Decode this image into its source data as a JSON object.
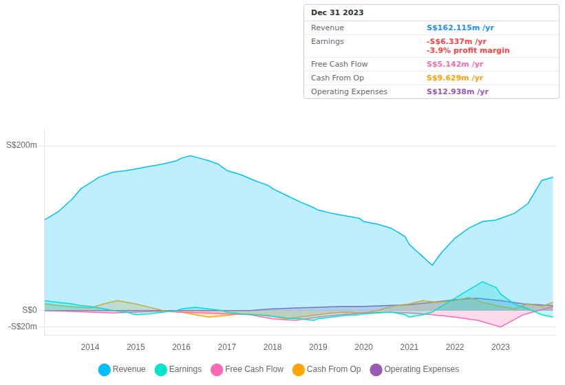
{
  "chart_data": {
    "type": "area",
    "annotations": {
      "title": "Dec 31 2023",
      "rows": [
        {
          "label": "Revenue",
          "text": "S$162.115m /yr",
          "color": "#1e90ff"
        },
        {
          "label": "Earnings",
          "text": "-S$6.337m /yr",
          "color": "#ff4444",
          "extra": "-3.9% profit margin",
          "extra_color": "#ff4444"
        },
        {
          "label": "Free Cash Flow",
          "text": "S$5.142m /yr",
          "color": "#ff69b4"
        },
        {
          "label": "Cash From Op",
          "text": "S$9.629m /yr",
          "color": "#ffa500"
        },
        {
          "label": "Operating Expenses",
          "text": "S$12.938m /yr",
          "color": "#9b59b6"
        }
      ]
    },
    "series": [
      {
        "name": "Revenue",
        "color": "#00bfff",
        "x": [
          2013.0,
          2013.3,
          2013.6,
          2013.8,
          2014.0,
          2014.2,
          2014.5,
          2014.8,
          2015.0,
          2015.3,
          2015.6,
          2015.9,
          2016.0,
          2016.2,
          2016.4,
          2016.6,
          2016.8,
          2017.0,
          2017.3,
          2017.6,
          2017.9,
          2018.0,
          2018.3,
          2018.6,
          2018.9,
          2019.0,
          2019.3,
          2019.6,
          2019.9,
          2020.0,
          2020.3,
          2020.6,
          2020.9,
          2021.0,
          2021.3,
          2021.5,
          2021.7,
          2022.0,
          2022.3,
          2022.6,
          2022.9,
          2023.0,
          2023.3,
          2023.6,
          2023.9,
          2024.15
        ],
        "values": [
          110,
          120,
          135,
          148,
          155,
          162,
          168,
          170,
          172,
          175,
          178,
          182,
          185,
          188,
          185,
          182,
          178,
          170,
          165,
          158,
          152,
          148,
          140,
          132,
          125,
          122,
          118,
          115,
          112,
          108,
          105,
          100,
          90,
          80,
          65,
          55,
          70,
          88,
          100,
          108,
          110,
          112,
          118,
          130,
          158,
          162
        ]
      },
      {
        "name": "Earnings",
        "color": "#00e5cc",
        "x": [
          2013.0,
          2013.3,
          2013.6,
          2013.8,
          2014.0,
          2014.2,
          2014.5,
          2014.8,
          2015.0,
          2015.3,
          2015.6,
          2015.9,
          2016.0,
          2016.3,
          2016.6,
          2016.9,
          2017.0,
          2017.3,
          2017.6,
          2017.9,
          2018.0,
          2018.3,
          2018.6,
          2018.9,
          2019.0,
          2019.3,
          2019.6,
          2019.9,
          2020.0,
          2020.3,
          2020.6,
          2020.9,
          2021.0,
          2021.3,
          2021.5,
          2021.7,
          2022.0,
          2022.3,
          2022.6,
          2022.9,
          2023.0,
          2023.3,
          2023.6,
          2023.9,
          2024.15
        ],
        "values": [
          12,
          10,
          8,
          6,
          5,
          3,
          0,
          -2,
          -5,
          -4,
          -2,
          0,
          2,
          4,
          2,
          0,
          -2,
          -4,
          -5,
          -6,
          -7,
          -9,
          -10,
          -12,
          -10,
          -8,
          -6,
          -5,
          -4,
          -3,
          -2,
          -5,
          -8,
          -5,
          -2,
          5,
          15,
          25,
          35,
          28,
          20,
          8,
          2,
          -5,
          -8
        ]
      },
      {
        "name": "Free Cash Flow",
        "color": "#ff69b4",
        "x": [
          2013.0,
          2013.5,
          2014.0,
          2014.5,
          2015.0,
          2015.5,
          2016.0,
          2016.5,
          2017.0,
          2017.5,
          2018.0,
          2018.5,
          2019.0,
          2019.5,
          2020.0,
          2020.5,
          2021.0,
          2021.5,
          2022.0,
          2022.5,
          2023.0,
          2023.5,
          2024.15
        ],
        "values": [
          0,
          -1,
          -2,
          -3,
          -2,
          -1,
          -2,
          -3,
          -4,
          -5,
          -10,
          -12,
          -8,
          -5,
          -3,
          -2,
          -3,
          -5,
          -8,
          -12,
          -20,
          -5,
          5
        ]
      },
      {
        "name": "Cash From Op",
        "color": "#ffa500",
        "x": [
          2013.0,
          2013.5,
          2014.0,
          2014.3,
          2014.6,
          2015.0,
          2015.3,
          2015.6,
          2016.0,
          2016.3,
          2016.6,
          2017.0,
          2017.3,
          2017.6,
          2018.0,
          2018.3,
          2018.6,
          2019.0,
          2019.3,
          2019.6,
          2020.0,
          2020.3,
          2020.6,
          2021.0,
          2021.3,
          2021.6,
          2022.0,
          2022.3,
          2022.6,
          2023.0,
          2023.3,
          2023.6,
          2023.9,
          2024.15
        ],
        "values": [
          8,
          5,
          3,
          8,
          12,
          8,
          4,
          0,
          -2,
          -5,
          -8,
          -6,
          -4,
          -5,
          -7,
          -10,
          -8,
          -5,
          -3,
          -2,
          -3,
          0,
          5,
          8,
          12,
          10,
          12,
          16,
          10,
          5,
          2,
          8,
          5,
          10
        ]
      },
      {
        "name": "Operating Expenses",
        "color": "#9b59b6",
        "x": [
          2013.0,
          2013.5,
          2014.0,
          2014.5,
          2015.0,
          2015.5,
          2016.0,
          2016.5,
          2017.0,
          2017.5,
          2018.0,
          2018.5,
          2019.0,
          2019.5,
          2020.0,
          2020.5,
          2021.0,
          2021.5,
          2022.0,
          2022.5,
          2023.0,
          2023.5,
          2024.15
        ],
        "values": [
          0,
          0,
          0,
          0,
          0,
          0,
          0,
          0,
          0,
          0,
          2,
          3,
          4,
          5,
          5,
          6,
          7,
          10,
          13,
          15,
          12,
          8,
          6
        ]
      }
    ],
    "xlim": [
      2013.0,
      2024.2
    ],
    "xticks": [
      2014,
      2015,
      2016,
      2017,
      2018,
      2019,
      2020,
      2021,
      2022,
      2023
    ],
    "ylim": [
      -30,
      220
    ],
    "yticks": [
      {
        "value": -20,
        "label": "-S$20m"
      },
      {
        "value": 0,
        "label": "S$0"
      },
      {
        "value": 200,
        "label": "S$200m"
      }
    ],
    "grid": true,
    "legend": "bottom"
  }
}
